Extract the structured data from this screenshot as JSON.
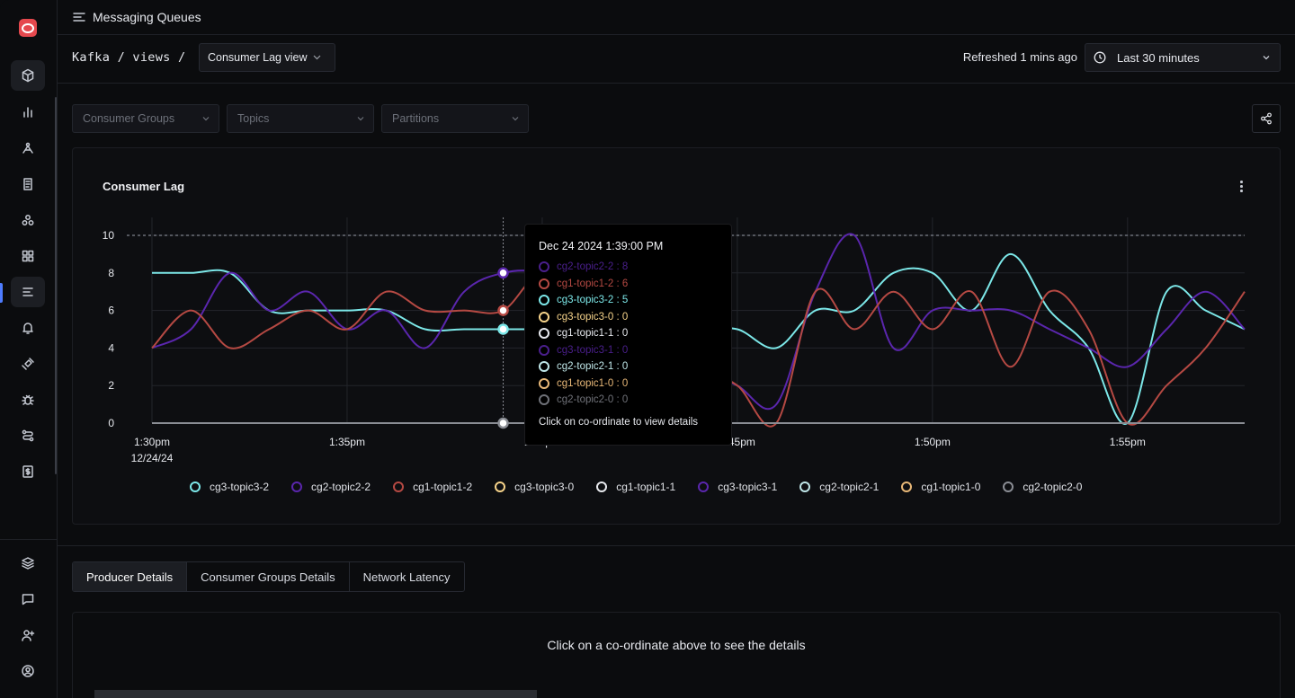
{
  "header": {
    "title": "Messaging Queues"
  },
  "breadcrumb": {
    "text": "Kafka / views /"
  },
  "view_select": {
    "value": "Consumer Lag view"
  },
  "refresh": {
    "text": "Refreshed 1 mins ago"
  },
  "time_range": {
    "value": "Last 30 minutes"
  },
  "filters": {
    "consumer_groups": "Consumer Groups",
    "topics": "Topics",
    "partitions": "Partitions"
  },
  "chart_title": "Consumer Lag",
  "tooltip": {
    "title": "Dec 24 2024 1:39:00 PM",
    "rows": [
      {
        "label": "cg2-topic2-2 : 8",
        "color": "#4a1f8c"
      },
      {
        "label": "cg1-topic1-2 : 6",
        "color": "#b54943"
      },
      {
        "label": "cg3-topic3-2 : 5",
        "color": "#7ce7e8"
      },
      {
        "label": "cg3-topic3-0 : 0",
        "color": "#f6d38a"
      },
      {
        "label": "cg1-topic1-1 : 0",
        "color": "#e7e9ee"
      },
      {
        "label": "cg3-topic3-1 : 0",
        "color": "#4a1f8c"
      },
      {
        "label": "cg2-topic2-1 : 0",
        "color": "#bfe6e8"
      },
      {
        "label": "cg1-topic1-0 : 0",
        "color": "#e8b878"
      },
      {
        "label": "cg2-topic2-0 : 0",
        "color": "#6f7178"
      }
    ],
    "footer": "Click on co-ordinate to view details"
  },
  "legend": [
    {
      "label": "cg3-topic3-2",
      "color": "#7ce7e8"
    },
    {
      "label": "cg2-topic2-2",
      "color": "#5a26ad"
    },
    {
      "label": "cg1-topic1-2",
      "color": "#b54943"
    },
    {
      "label": "cg3-topic3-0",
      "color": "#f6d38a"
    },
    {
      "label": "cg1-topic1-1",
      "color": "#e7e9ee"
    },
    {
      "label": "cg3-topic3-1",
      "color": "#5a26ad"
    },
    {
      "label": "cg2-topic2-1",
      "color": "#bfe6e8"
    },
    {
      "label": "cg1-topic1-0",
      "color": "#e8b878"
    },
    {
      "label": "cg2-topic2-0",
      "color": "#8a8d94"
    }
  ],
  "tabs": [
    "Producer Details",
    "Consumer Groups Details",
    "Network Latency"
  ],
  "details_message": "Click on a co-ordinate above to see the details",
  "chart_data": {
    "type": "line",
    "title": "Consumer Lag",
    "xlabel": "",
    "ylabel": "",
    "ylim": [
      0,
      10
    ],
    "yticks": [
      0,
      2,
      4,
      6,
      8,
      10
    ],
    "xlim": [
      "1:30pm",
      "1:58pm"
    ],
    "xticks": [
      "1:30pm 12/24/24",
      "1:35pm",
      "1:40pm",
      "1:45pm",
      "1:50pm",
      "1:55pm"
    ],
    "threshold": 10,
    "grid": true,
    "hover_x": "1:39pm",
    "series": [
      {
        "name": "cg3-topic3-2",
        "color": "#7ce7e8",
        "x_min": [
          0,
          1,
          2,
          3,
          4,
          5,
          6,
          7,
          8,
          9,
          10,
          11,
          12,
          13,
          14,
          15,
          16,
          17,
          18,
          19,
          20,
          21,
          22,
          23,
          24,
          25,
          26,
          27,
          28
        ],
        "values": [
          8,
          8,
          8,
          6,
          6,
          6,
          6,
          5,
          5,
          5,
          5,
          5,
          5,
          5,
          5,
          5,
          4,
          6,
          6,
          8,
          8,
          6,
          9,
          6,
          4,
          0,
          7,
          6,
          5
        ]
      },
      {
        "name": "cg2-topic2-2",
        "color": "#5a26ad",
        "x_min": [
          0,
          1,
          2,
          3,
          4,
          5,
          6,
          7,
          8,
          9,
          10,
          11,
          12,
          13,
          14,
          15,
          16,
          17,
          18,
          19,
          20,
          21,
          22,
          23,
          24,
          25,
          26,
          27,
          28
        ],
        "values": [
          4,
          5,
          8,
          6,
          7,
          5,
          6,
          4,
          7,
          8,
          8,
          7,
          5,
          4,
          3,
          2,
          1,
          7,
          10,
          4,
          6,
          6,
          6,
          5,
          4,
          3,
          5,
          7,
          5
        ]
      },
      {
        "name": "cg1-topic1-2",
        "color": "#b54943",
        "x_min": [
          0,
          1,
          2,
          3,
          4,
          5,
          6,
          7,
          8,
          9,
          10,
          11,
          12,
          13,
          14,
          15,
          16,
          17,
          18,
          19,
          20,
          21,
          22,
          23,
          24,
          25,
          26,
          27,
          28
        ],
        "values": [
          4,
          6,
          4,
          5,
          6,
          5,
          7,
          6,
          6,
          6,
          8,
          6,
          5,
          4,
          3,
          2,
          0,
          7,
          5,
          7,
          5,
          7,
          3,
          7,
          5,
          0,
          2,
          4,
          7
        ]
      },
      {
        "name": "cg2-topic2-0",
        "color": "#8a8d94",
        "x_min": [
          0,
          28
        ],
        "values": [
          0,
          0
        ]
      }
    ]
  }
}
